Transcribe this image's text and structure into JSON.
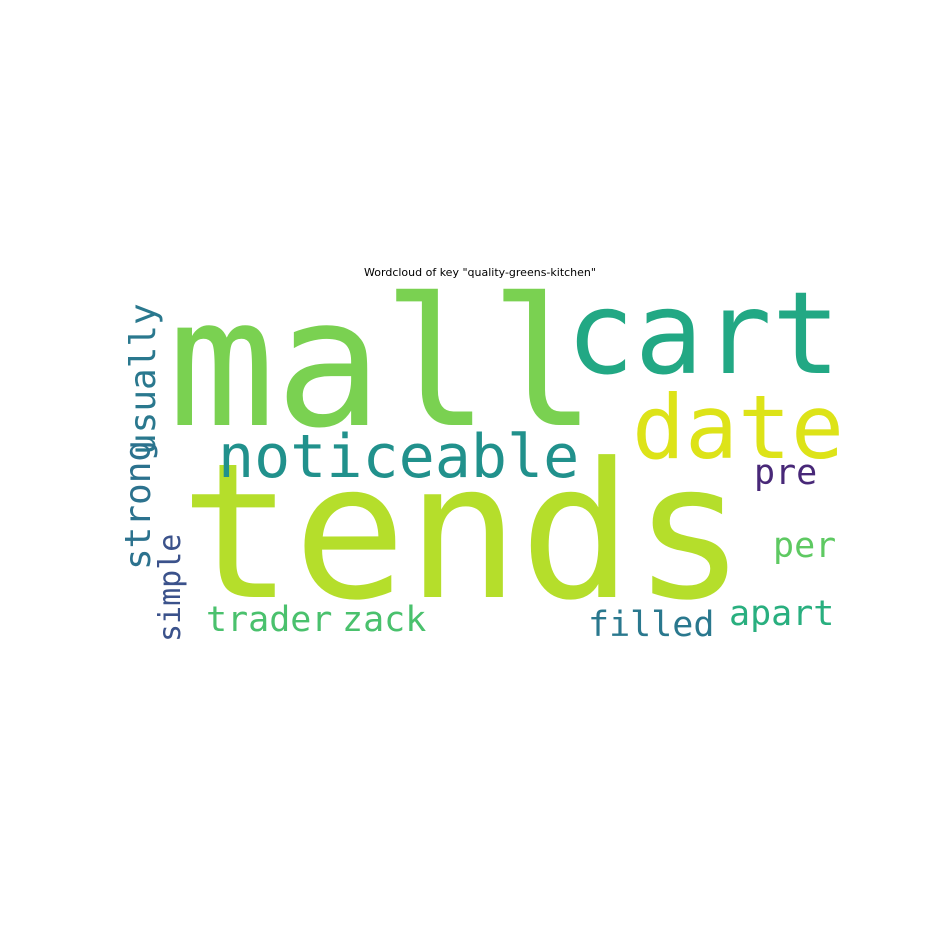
{
  "title": "Wordcloud of key \"quality-greens-kitchen\"",
  "words": [
    {
      "text": "mall",
      "color": "#7ad151"
    },
    {
      "text": "tends",
      "color": "#b5de2b"
    },
    {
      "text": "cart",
      "color": "#22a884"
    },
    {
      "text": "date",
      "color": "#dde318"
    },
    {
      "text": "noticeable",
      "color": "#21918c"
    },
    {
      "text": "usually",
      "color": "#2a788e"
    },
    {
      "text": "strong",
      "color": "#2c728e"
    },
    {
      "text": "simple",
      "color": "#3b528b"
    },
    {
      "text": "trader",
      "color": "#4ac16d"
    },
    {
      "text": "zack",
      "color": "#4ac16d"
    },
    {
      "text": "pre",
      "color": "#482878"
    },
    {
      "text": "per",
      "color": "#5ec962"
    },
    {
      "text": "apart",
      "color": "#29af7f"
    },
    {
      "text": "filled",
      "color": "#2a788e"
    }
  ]
}
